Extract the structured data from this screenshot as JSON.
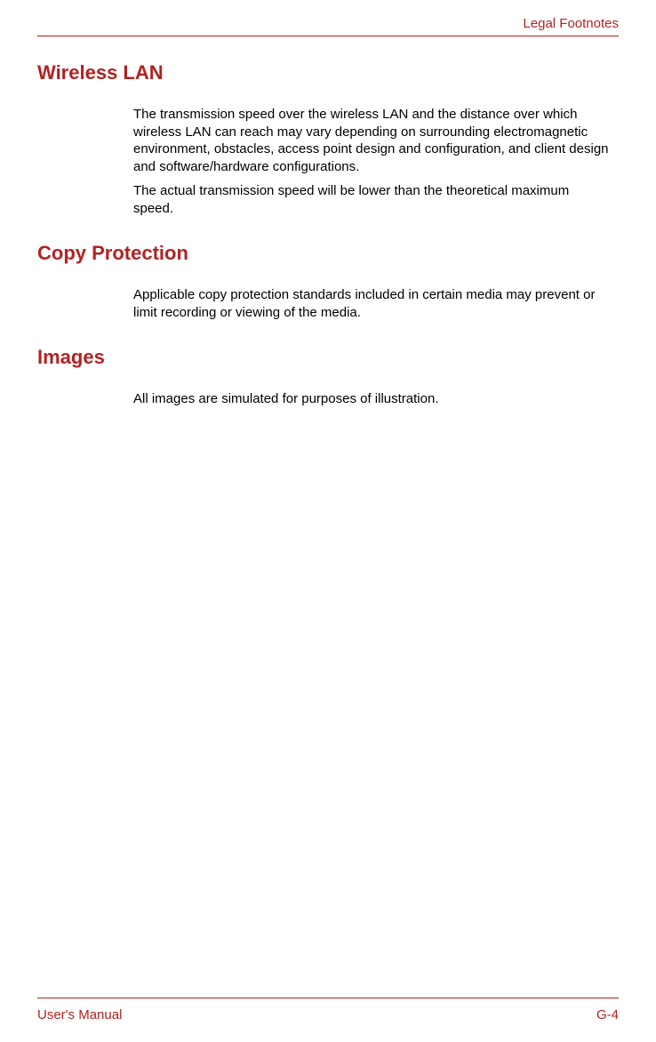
{
  "header": {
    "title": "Legal Footnotes"
  },
  "sections": [
    {
      "heading": "Wireless LAN",
      "paragraphs": [
        "The transmission speed over the wireless LAN and the distance over which wireless LAN can reach may vary depending on surrounding electromagnetic environment, obstacles, access point design and configuration, and client design and software/hardware configurations.",
        "The actual transmission speed will be lower than the theoretical maximum speed."
      ]
    },
    {
      "heading": "Copy Protection",
      "paragraphs": [
        "Applicable copy protection standards included in certain media may prevent or limit recording or viewing of the media."
      ]
    },
    {
      "heading": "Images",
      "paragraphs": [
        "All images are simulated for purposes of illustration."
      ]
    }
  ],
  "footer": {
    "left": "User's Manual",
    "right": "G-4"
  },
  "colors": {
    "accent": "#b22222",
    "text": "#000000",
    "background": "#ffffff"
  },
  "typography": {
    "heading_fontsize": 22,
    "body_fontsize": 15,
    "footer_fontsize": 15
  }
}
